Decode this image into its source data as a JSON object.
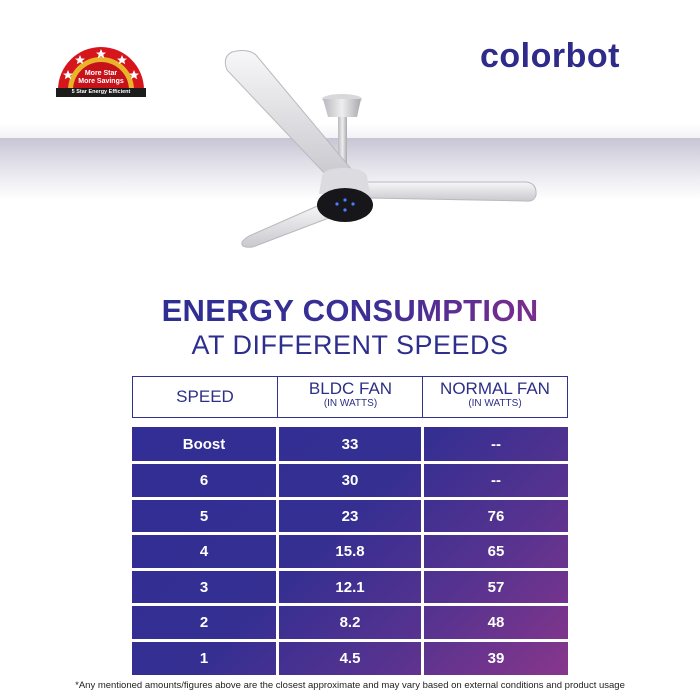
{
  "badge": {
    "line1": "More Star",
    "line2": "More Savings",
    "strip": "5 Star Energy Efficient"
  },
  "brand": {
    "name": "colorbot"
  },
  "headline": {
    "title": "ENERGY CONSUMPTION",
    "subtitle": "AT DIFFERENT SPEEDS"
  },
  "table": {
    "headers": [
      {
        "label": "SPEED",
        "sub": ""
      },
      {
        "label": "BLDC FAN",
        "sub": "(IN WATTS)"
      },
      {
        "label": "NORMAL FAN",
        "sub": "(IN WATTS)"
      }
    ],
    "rows": [
      {
        "speed": "Boost",
        "bldc": "33",
        "normal": "--"
      },
      {
        "speed": "6",
        "bldc": "30",
        "normal": "--"
      },
      {
        "speed": "5",
        "bldc": "23",
        "normal": "76"
      },
      {
        "speed": "4",
        "bldc": "15.8",
        "normal": "65"
      },
      {
        "speed": "3",
        "bldc": "12.1",
        "normal": "57"
      },
      {
        "speed": "2",
        "bldc": "8.2",
        "normal": "48"
      },
      {
        "speed": "1",
        "bldc": "4.5",
        "normal": "39"
      }
    ]
  },
  "footnote": "*Any mentioned amounts/figures above are the closest approximate and may vary based on external conditions and product usage",
  "colors": {
    "brand": "#2e2b8a",
    "table_start": "#312e95",
    "table_end": "#88368b",
    "badge_red": "#d7151c"
  },
  "icons": {
    "badge": "five-star-rating-badge",
    "product": "ceiling-fan-image"
  }
}
